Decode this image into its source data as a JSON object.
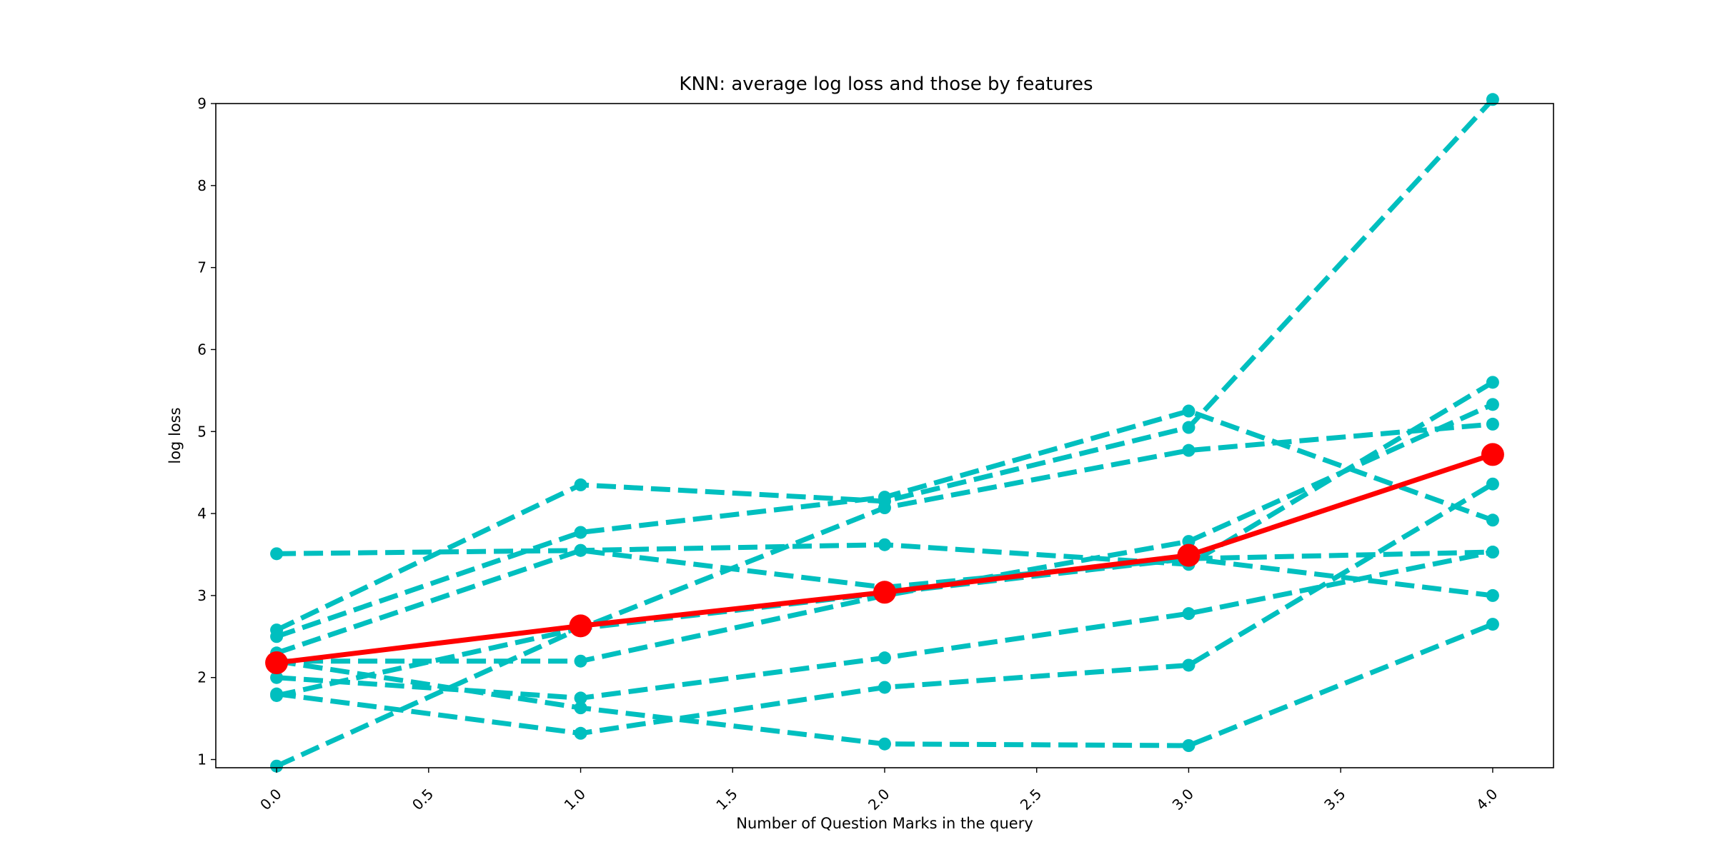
{
  "chart_data": {
    "type": "line",
    "title": "KNN: average log loss and those by features",
    "xlabel": "Number of Question Marks in the query",
    "ylabel": "log loss",
    "xlim": [
      -0.2,
      4.2
    ],
    "ylim": [
      0.9,
      9.0
    ],
    "x": [
      0,
      1,
      2,
      3,
      4
    ],
    "xticks": [
      "0.0",
      "0.5",
      "1.0",
      "1.5",
      "2.0",
      "2.5",
      "3.0",
      "3.5",
      "4.0"
    ],
    "yticks": [
      "1",
      "2",
      "3",
      "4",
      "5",
      "6",
      "7",
      "8",
      "9"
    ],
    "grid": false,
    "legend": "none",
    "colors": {
      "features": "#00bfbf",
      "average": "#ff0000"
    },
    "series": [
      {
        "values": [
          2.58,
          4.35,
          4.15,
          5.05,
          9.05
        ],
        "color": "#00bfbf",
        "style": "dashed"
      },
      {
        "values": [
          2.5,
          3.77,
          4.2,
          5.25,
          3.92
        ],
        "color": "#00bfbf",
        "style": "dashed"
      },
      {
        "values": [
          3.51,
          3.55,
          3.62,
          3.38,
          5.6
        ],
        "color": "#00bfbf",
        "style": "dashed"
      },
      {
        "values": [
          1.78,
          2.6,
          4.07,
          4.77,
          5.09
        ],
        "color": "#00bfbf",
        "style": "dashed"
      },
      {
        "values": [
          2.3,
          3.55,
          3.1,
          3.45,
          3.0
        ],
        "color": "#00bfbf",
        "style": "dashed"
      },
      {
        "values": [
          2.2,
          2.2,
          3.0,
          3.66,
          5.33
        ],
        "color": "#00bfbf",
        "style": "dashed"
      },
      {
        "values": [
          2.0,
          1.75,
          2.24,
          2.78,
          3.53
        ],
        "color": "#00bfbf",
        "style": "dashed"
      },
      {
        "values": [
          1.8,
          1.32,
          1.88,
          2.15,
          4.36
        ],
        "color": "#00bfbf",
        "style": "dashed"
      },
      {
        "values": [
          2.2,
          1.63,
          1.19,
          1.17,
          2.65
        ],
        "color": "#00bfbf",
        "style": "dashed"
      },
      {
        "values": [
          0.92,
          2.6,
          3.03,
          3.45,
          3.53
        ],
        "color": "#00bfbf",
        "style": "dashed"
      },
      {
        "values": [
          2.18,
          2.63,
          3.04,
          3.49,
          4.72
        ],
        "color": "#ff0000",
        "style": "solid"
      }
    ]
  }
}
